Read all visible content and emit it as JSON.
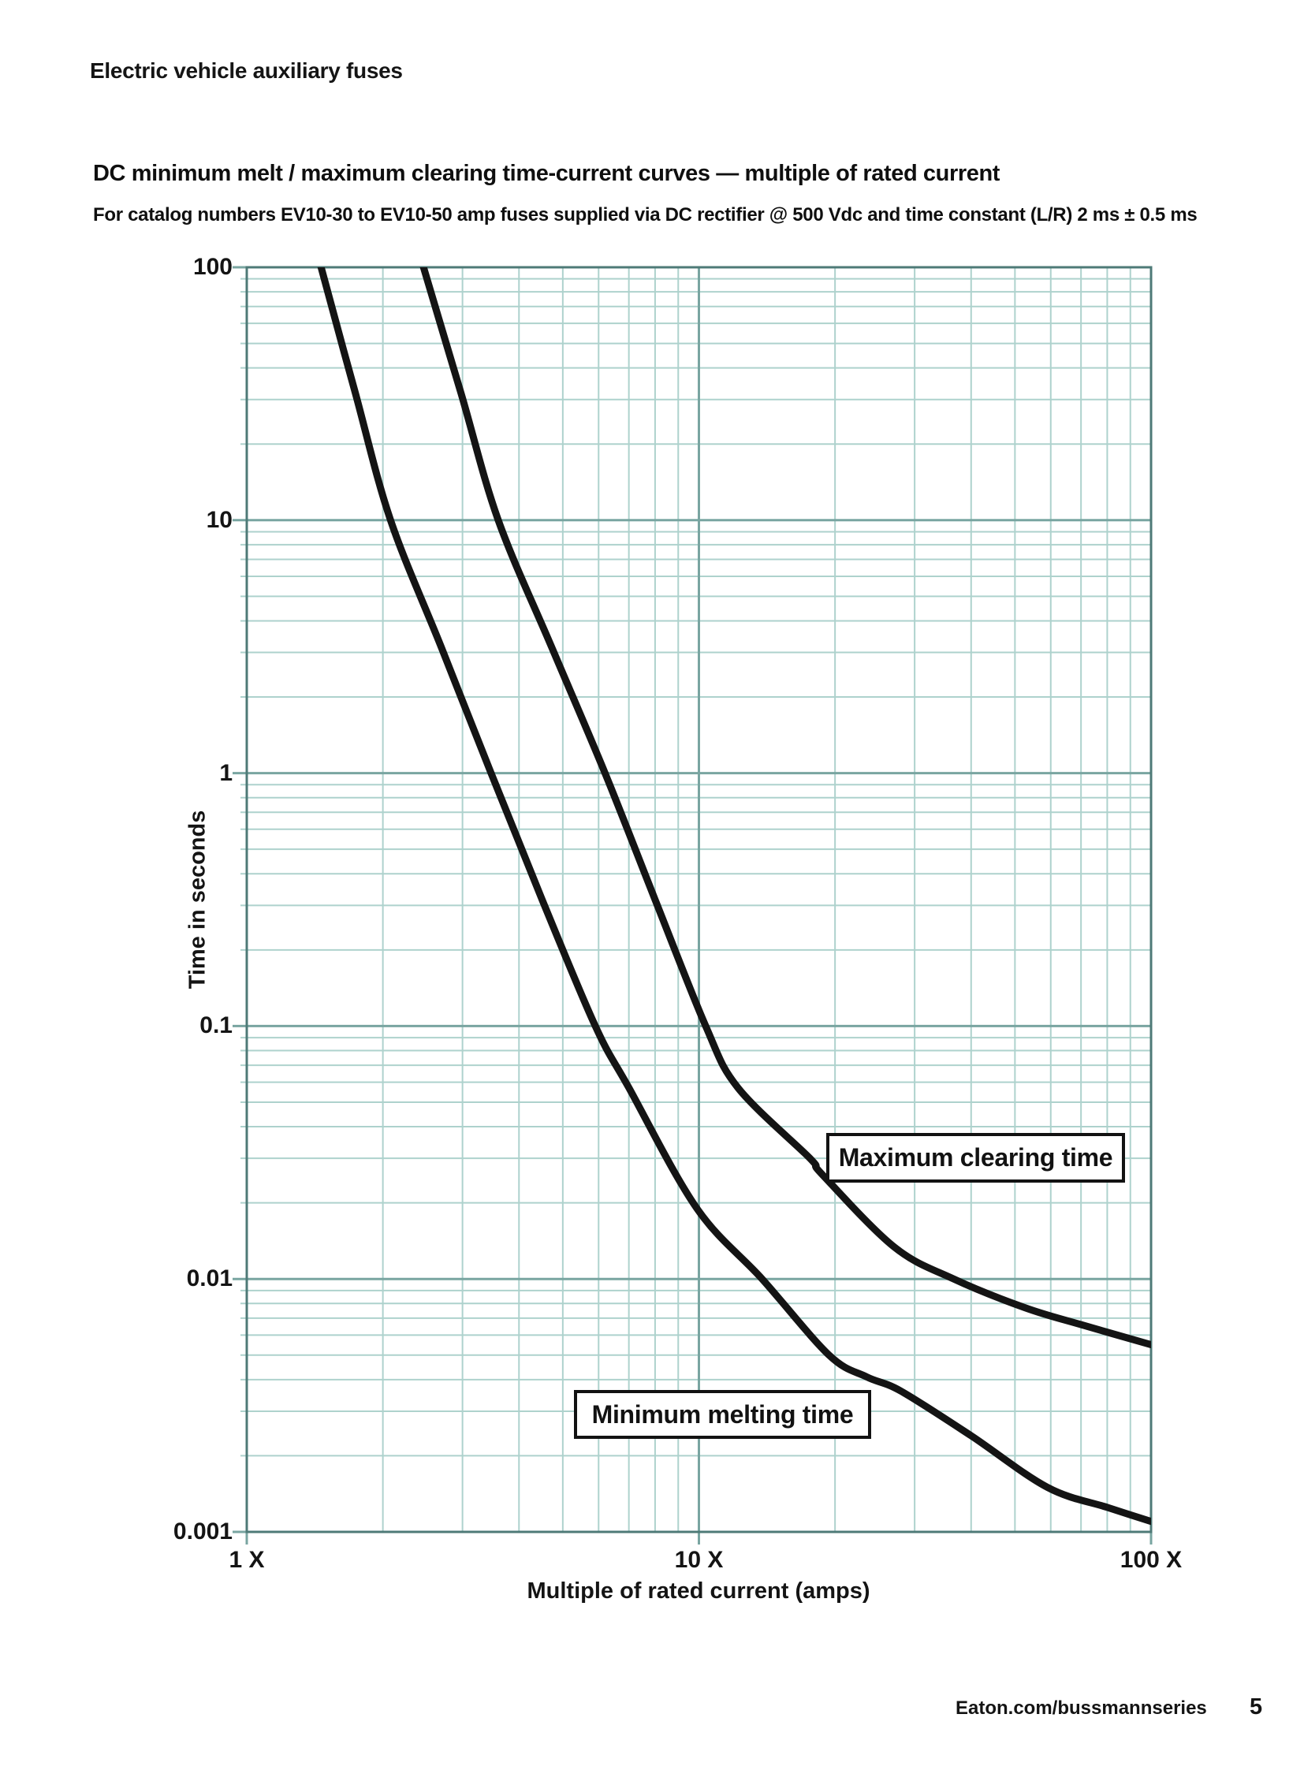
{
  "header": {
    "title": "Electric vehicle auxiliary fuses"
  },
  "chart": {
    "title": "DC minimum melt / maximum clearing time-current curves — multiple of rated current",
    "subtitle": "For catalog numbers EV10-30 to EV10-50 amp fuses supplied via DC rectifier @ 500 Vdc and time constant (L/R) 2 ms ± 0.5 ms"
  },
  "chart_data": {
    "type": "line",
    "x_scale": "log",
    "y_scale": "log",
    "xlim": [
      1,
      100
    ],
    "ylim": [
      0.001,
      100
    ],
    "xlabel": "Multiple of rated current (amps)",
    "ylabel": "Time in seconds",
    "x_ticks": [
      {
        "value": 1,
        "label": "1 X"
      },
      {
        "value": 10,
        "label": "10 X"
      },
      {
        "value": 100,
        "label": "100 X"
      }
    ],
    "y_ticks": [
      {
        "value": 100,
        "label": "100"
      },
      {
        "value": 10,
        "label": "10"
      },
      {
        "value": 1,
        "label": "1"
      },
      {
        "value": 0.1,
        "label": "0.1"
      },
      {
        "value": 0.01,
        "label": "0.01"
      },
      {
        "value": 0.001,
        "label": "0.001"
      }
    ],
    "grid": {
      "minor": true,
      "major": true
    },
    "legend_position": "on-plot boxed labels",
    "colors": {
      "grid_minor": "#aed2cd",
      "grid_major": "#79a5a1",
      "axis": "#4e7a77",
      "curve": "#141414",
      "text": "#111111"
    },
    "series": [
      {
        "name": "Minimum melting time",
        "points": [
          [
            1.4,
            140
          ],
          [
            1.46,
            100
          ],
          [
            1.74,
            31.6
          ],
          [
            2.08,
            10
          ],
          [
            2.69,
            3.16
          ],
          [
            3.47,
            1
          ],
          [
            4.5,
            0.316
          ],
          [
            5.9,
            0.1
          ],
          [
            7.0,
            0.057
          ],
          [
            9.9,
            0.019
          ],
          [
            13.8,
            0.01
          ],
          [
            19.4,
            0.005
          ],
          [
            23.5,
            0.0041
          ],
          [
            28.0,
            0.0036
          ],
          [
            40.0,
            0.0024
          ],
          [
            59.0,
            0.0015
          ],
          [
            80.0,
            0.00125
          ],
          [
            100,
            0.0011
          ]
        ]
      },
      {
        "name": "Maximum clearing time",
        "points": [
          [
            2.35,
            140
          ],
          [
            2.46,
            100
          ],
          [
            2.98,
            31.6
          ],
          [
            3.6,
            10
          ],
          [
            4.72,
            3.16
          ],
          [
            6.2,
            1
          ],
          [
            8.0,
            0.316
          ],
          [
            10.35,
            0.1
          ],
          [
            12.2,
            0.057
          ],
          [
            17.6,
            0.03
          ],
          [
            18.7,
            0.026
          ],
          [
            27.0,
            0.0134
          ],
          [
            36.6,
            0.01
          ],
          [
            52.6,
            0.0077
          ],
          [
            70.0,
            0.0066
          ],
          [
            100,
            0.0055
          ]
        ]
      }
    ]
  },
  "footer": {
    "link": "Eaton.com/bussmannseries",
    "page_number": "5"
  }
}
